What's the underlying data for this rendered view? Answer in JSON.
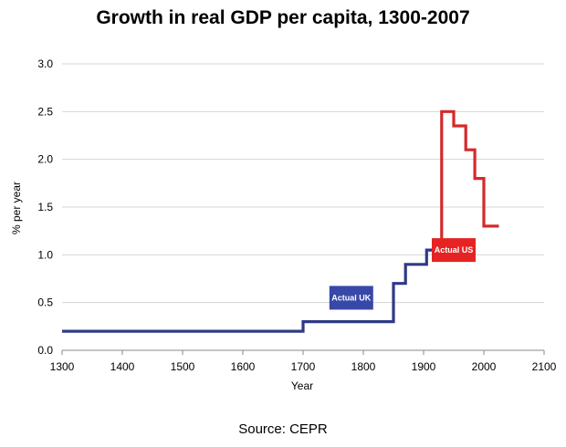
{
  "chart_data": {
    "type": "line",
    "title": "Growth in real GDP per capita, 1300-2007",
    "xlabel": "Year",
    "ylabel": "% per year",
    "xlim": [
      1300,
      2100
    ],
    "ylim": [
      0,
      3.0
    ],
    "xticks": [
      1300,
      1400,
      1500,
      1600,
      1700,
      1800,
      1900,
      2000,
      2100
    ],
    "yticks": [
      "0.0",
      "0.5",
      "1.0",
      "1.5",
      "2.0",
      "2.5",
      "3.0"
    ],
    "grid": true,
    "series": [
      {
        "name": "Actual UK",
        "color": "#2e3a87",
        "points": [
          [
            1300,
            0.2
          ],
          [
            1700,
            0.2
          ],
          [
            1700,
            0.3
          ],
          [
            1850,
            0.3
          ],
          [
            1850,
            0.7
          ],
          [
            1870,
            0.7
          ],
          [
            1870,
            0.9
          ],
          [
            1905,
            0.9
          ],
          [
            1905,
            1.05
          ],
          [
            1915,
            1.05
          ]
        ]
      },
      {
        "name": "Actual US",
        "color": "#d42a2a",
        "points": [
          [
            1915,
            1.05
          ],
          [
            1930,
            1.05
          ],
          [
            1930,
            2.5
          ],
          [
            1950,
            2.5
          ],
          [
            1950,
            2.35
          ],
          [
            1970,
            2.35
          ],
          [
            1970,
            2.1
          ],
          [
            1985,
            2.1
          ],
          [
            1985,
            1.8
          ],
          [
            2000,
            1.8
          ],
          [
            2000,
            1.3
          ],
          [
            2025,
            1.3
          ]
        ]
      }
    ],
    "annotations": [
      {
        "text": "Actual UK",
        "color": "#3748a8",
        "x": 1780,
        "y": 0.55
      },
      {
        "text": "Actual US",
        "color": "#e52323",
        "x": 1950,
        "y": 1.05
      }
    ]
  },
  "source": "Source: CEPR"
}
